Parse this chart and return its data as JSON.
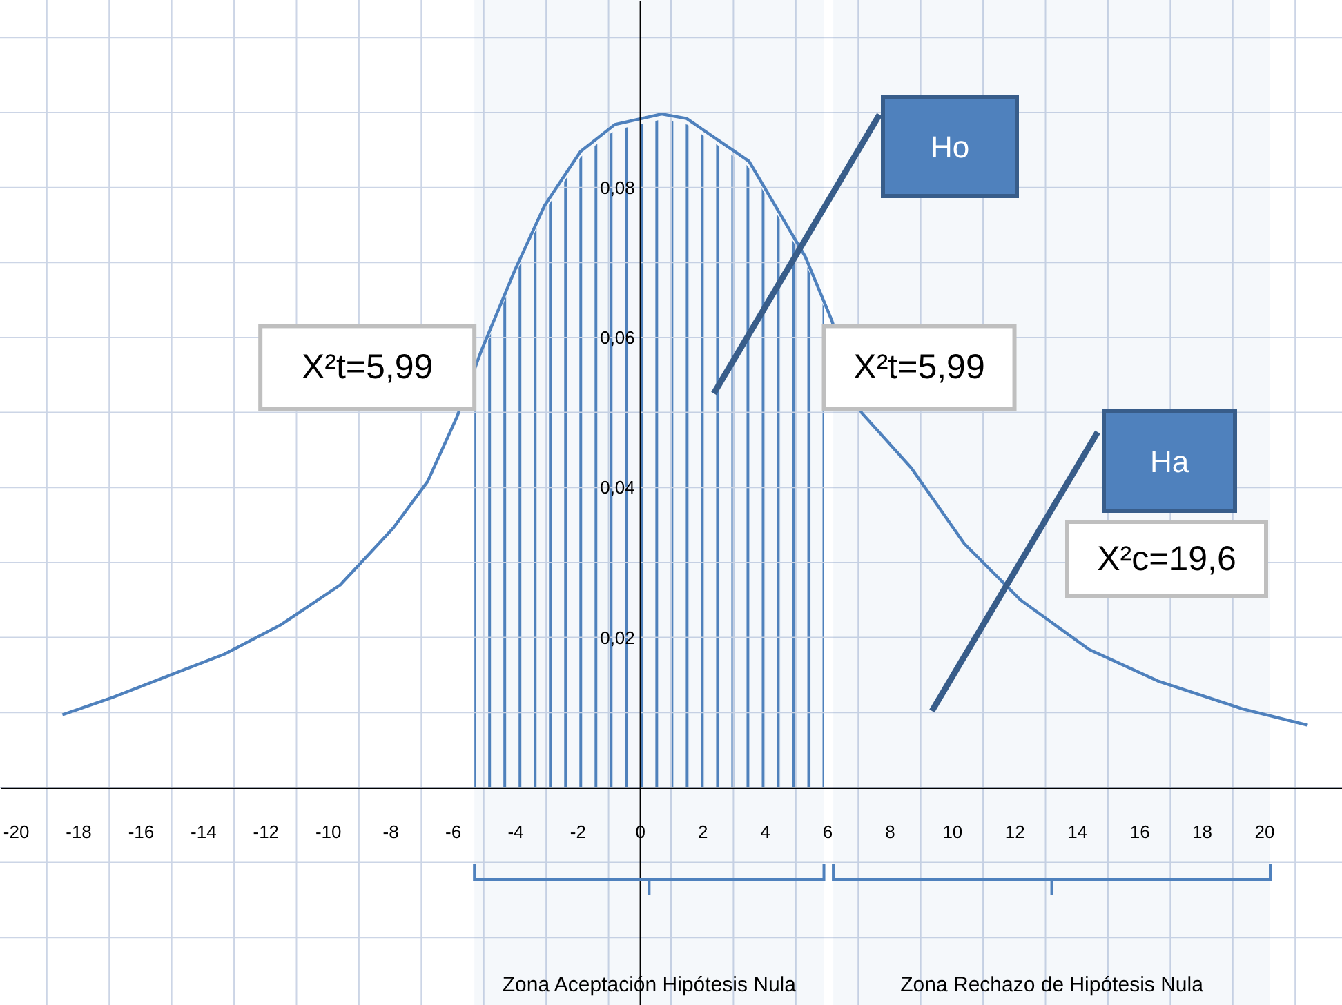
{
  "chart_data": {
    "type": "line",
    "x": [
      -18.5,
      -16.9,
      -13.3,
      -11.5,
      -9.6,
      -7.9,
      -6.8,
      -5.85,
      -5.1,
      -4.0,
      -3.05,
      -1.9,
      -0.8,
      0.7,
      1.5,
      3.5,
      5.3,
      6.15,
      7.1,
      8.7,
      10.4,
      12.2,
      14.4,
      16.6,
      19.3,
      21.4
    ],
    "series": [
      {
        "color": "#4f81bd",
        "values": [
          0.0097,
          0.012,
          0.0178,
          0.0217,
          0.027,
          0.0346,
          0.0408,
          0.0495,
          0.058,
          0.069,
          0.0776,
          0.0848,
          0.0884,
          0.0898,
          0.0892,
          0.0835,
          0.0708,
          0.0623,
          0.05,
          0.0426,
          0.0325,
          0.025,
          0.0184,
          0.0142,
          0.0105,
          0.0083
        ]
      }
    ],
    "xlim": [
      -20.5,
      22.5
    ],
    "ylim": [
      -0.029,
      0.105
    ],
    "xticks": [
      -20,
      {
        "value": -19,
        "label": null
      },
      -18,
      {
        "value": -17,
        "label": null
      },
      -16,
      {
        "value": -15,
        "label": null
      },
      -14,
      {
        "value": -13,
        "label": null
      },
      -12,
      {
        "value": -11,
        "label": null
      },
      -10,
      {
        "value": -9,
        "label": null
      },
      -8,
      {
        "value": -7,
        "label": null
      },
      -6,
      {
        "value": -5,
        "label": null
      },
      -4,
      {
        "value": -3,
        "label": null
      },
      -2,
      {
        "value": -1,
        "label": null
      },
      0,
      {
        "value": 1,
        "label": null
      },
      2,
      {
        "value": 3,
        "label": null
      },
      4,
      {
        "value": 5,
        "label": null
      },
      6,
      {
        "value": 7,
        "label": null
      },
      8,
      {
        "value": 9,
        "label": null
      },
      10,
      {
        "value": 11,
        "label": null
      },
      12,
      {
        "value": 13,
        "label": null
      },
      14,
      {
        "value": 15,
        "label": null
      },
      16,
      {
        "value": 17,
        "label": null
      },
      18,
      {
        "value": 19,
        "label": null
      },
      20,
      {
        "value": 21,
        "label": null
      }
    ],
    "yticks": [
      {
        "value": -0.02,
        "label": null
      },
      {
        "value": -0.01,
        "label": null
      },
      {
        "value": 0,
        "label": null
      },
      {
        "value": 0.01,
        "label": null
      },
      {
        "value": 0.02,
        "label": "0,02"
      },
      {
        "value": 0.03,
        "label": null
      },
      {
        "value": 0.04,
        "label": "0,04"
      },
      {
        "value": 0.05,
        "label": null
      },
      {
        "value": 0.06,
        "label": "0,06"
      },
      {
        "value": 0.07,
        "label": null
      },
      {
        "value": 0.08,
        "label": "0,08"
      },
      {
        "value": 0.09,
        "label": null
      },
      {
        "value": 0.1,
        "label": null
      }
    ],
    "grid": true,
    "bands": [
      {
        "axis": "x",
        "from": -5.3,
        "to": 5.9,
        "label": "Zona Aceptación Hipótesis Nula",
        "color": "#4f81bd"
      },
      {
        "axis": "x",
        "from": 6.2,
        "to": 20.2,
        "label": "Zona Rechazo de Hipótesis Nula"
      }
    ],
    "annotations": [
      {
        "text": "X²t=5,99",
        "x": -5.3,
        "y": 0.056
      },
      {
        "text": "X²t=5,99",
        "x": 5.9,
        "y": 0.056
      },
      "Ho",
      "Ha",
      "X²c=19,6"
    ]
  }
}
